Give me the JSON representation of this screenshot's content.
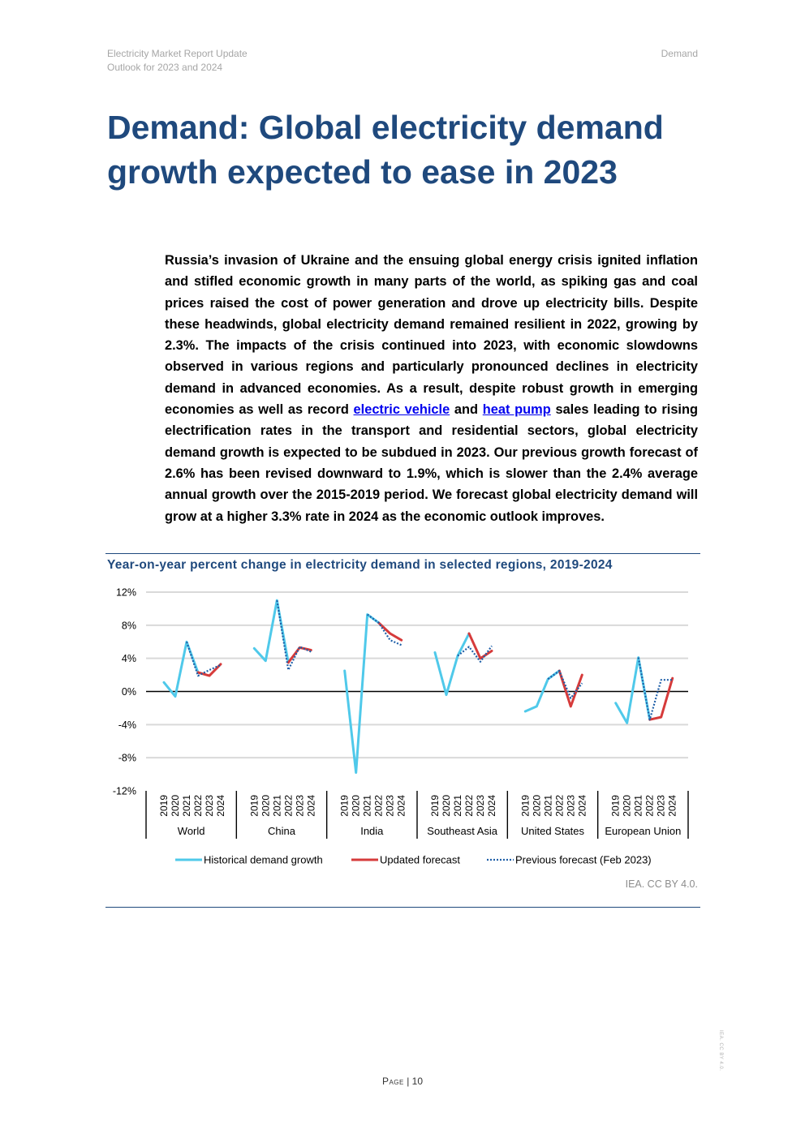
{
  "header": {
    "report_title": "Electricity Market Report Update",
    "report_subtitle": "Outlook for 2023 and 2024",
    "section": "Demand"
  },
  "title": "Demand: Global electricity demand growth expected to ease in 2023",
  "body": {
    "text_before_link1": "Russia’s invasion of Ukraine and the ensuing global energy crisis ignited inflation and stifled economic growth in many parts of the world, as spiking gas and coal prices raised the cost of power generation and drove up electricity bills. Despite these headwinds, global electricity demand remained resilient in 2022, growing by 2.3%. The impacts of the crisis continued into 2023, with economic slowdowns observed in various regions and particularly pronounced declines in electricity demand in advanced economies. As a result, despite robust growth in emerging economies as well as record ",
    "link1": "electric vehicle",
    "text_between_links": " and ",
    "link2": "heat pump",
    "text_after_link2": " sales leading to rising electrification rates in the transport and residential sectors, global electricity demand growth is expected to be subdued in 2023. Our previous growth forecast of 2.6% has been revised downward to 1.9%, which is slower than the 2.4% average annual growth over the 2015-2019 period. We forecast global electricity demand will grow at a higher 3.3% rate in 2024 as the economic outlook improves."
  },
  "chart_data": {
    "type": "line",
    "title": "Year-on-year percent change in electricity demand in selected regions, 2019-2024",
    "ylim": [
      -12,
      12
    ],
    "yticks": [
      12,
      8,
      4,
      0,
      -4,
      -8,
      -12
    ],
    "ytick_labels": [
      "12%",
      "8%",
      "4%",
      "0%",
      "-4%",
      "-8%",
      "-12%"
    ],
    "years": [
      "2019",
      "2020",
      "2021",
      "2022",
      "2023",
      "2024"
    ],
    "groups": [
      "World",
      "China",
      "India",
      "Southeast Asia",
      "United States",
      "European Union"
    ],
    "series": [
      {
        "name": "Historical demand growth",
        "color": "#4fc9ea",
        "dash": "solid",
        "values": [
          [
            1.1,
            -0.6,
            6.0,
            2.3,
            null,
            null
          ],
          [
            5.2,
            3.7,
            11.0,
            3.5,
            null,
            null
          ],
          [
            2.5,
            -9.8,
            9.3,
            8.3,
            null,
            null
          ],
          [
            4.7,
            -0.4,
            4.3,
            7.0,
            null,
            null
          ],
          [
            -2.4,
            -1.8,
            1.5,
            2.5,
            null,
            null
          ],
          [
            -1.4,
            -3.8,
            4.1,
            -3.4,
            null,
            null
          ]
        ]
      },
      {
        "name": "Updated forecast",
        "color": "#d63b3b",
        "dash": "solid",
        "values": [
          [
            null,
            null,
            null,
            2.3,
            1.9,
            3.3
          ],
          [
            null,
            null,
            null,
            3.5,
            5.3,
            5.0
          ],
          [
            null,
            null,
            null,
            8.3,
            7.0,
            6.2
          ],
          [
            null,
            null,
            null,
            7.0,
            4.0,
            4.9
          ],
          [
            null,
            null,
            null,
            2.5,
            -1.8,
            2.0
          ],
          [
            null,
            null,
            null,
            -3.4,
            -3.1,
            1.6
          ]
        ]
      },
      {
        "name": "Previous forecast (Feb 2023)",
        "color": "#1f5fa8",
        "dash": "dotted",
        "values": [
          [
            null,
            null,
            6.0,
            1.9,
            2.6,
            3.2
          ],
          [
            null,
            null,
            11.0,
            2.6,
            5.4,
            4.8
          ],
          [
            null,
            null,
            9.3,
            8.3,
            6.2,
            5.6
          ],
          [
            null,
            null,
            4.3,
            5.4,
            3.6,
            5.5
          ],
          [
            null,
            null,
            1.5,
            2.5,
            -0.8,
            1.0
          ],
          [
            null,
            null,
            4.1,
            -3.4,
            1.4,
            1.4
          ]
        ]
      }
    ],
    "legend_position": "bottom"
  },
  "credit": "IEA. CC BY 4.0.",
  "footer": {
    "page_label": "Page",
    "page_number": "| 10"
  },
  "side_note": "IEA. CC BY 4.0."
}
